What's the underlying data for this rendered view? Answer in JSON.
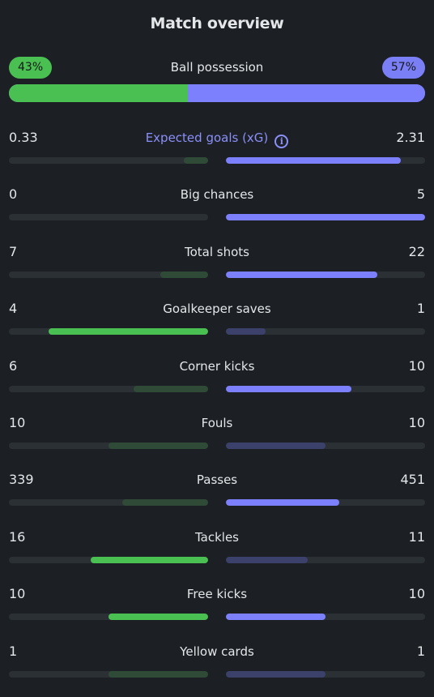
{
  "title": "Match overview",
  "possession": {
    "label": "Ball possession",
    "home_text": "43%",
    "away_text": "57%",
    "home_fraction": 0.43,
    "away_fraction": 0.57
  },
  "colors": {
    "home_leading": "#4ac052",
    "home_trailing": "#2f4a36",
    "away_leading": "#7d80fc",
    "away_trailing": "#3b416a",
    "track": "#2b3035",
    "background": "#1c2024"
  },
  "stats": [
    {
      "label": "Expected goals (xG)",
      "home": "0.33",
      "away": "2.31",
      "home_fill": 0.12,
      "away_fill": 0.88,
      "leader": "away",
      "accent": true,
      "icon": "info-icon"
    },
    {
      "label": "Big chances",
      "home": "0",
      "away": "5",
      "home_fill": 0.0,
      "away_fill": 1.0,
      "leader": "away"
    },
    {
      "label": "Total shots",
      "home": "7",
      "away": "22",
      "home_fill": 0.24,
      "away_fill": 0.76,
      "leader": "away"
    },
    {
      "label": "Goalkeeper saves",
      "home": "4",
      "away": "1",
      "home_fill": 0.8,
      "away_fill": 0.2,
      "leader": "home"
    },
    {
      "label": "Corner kicks",
      "home": "6",
      "away": "10",
      "home_fill": 0.375,
      "away_fill": 0.63,
      "leader": "away"
    },
    {
      "label": "Fouls",
      "home": "10",
      "away": "10",
      "home_fill": 0.5,
      "away_fill": 0.5,
      "leader": "none"
    },
    {
      "label": "Passes",
      "home": "339",
      "away": "451",
      "home_fill": 0.43,
      "away_fill": 0.57,
      "leader": "away"
    },
    {
      "label": "Tackles",
      "home": "16",
      "away": "11",
      "home_fill": 0.59,
      "away_fill": 0.41,
      "leader": "home"
    },
    {
      "label": "Free kicks",
      "home": "10",
      "away": "10",
      "home_fill": 0.5,
      "away_fill": 0.5,
      "leader": "both"
    },
    {
      "label": "Yellow cards",
      "home": "1",
      "away": "1",
      "home_fill": 0.5,
      "away_fill": 0.5,
      "leader": "none"
    }
  ]
}
